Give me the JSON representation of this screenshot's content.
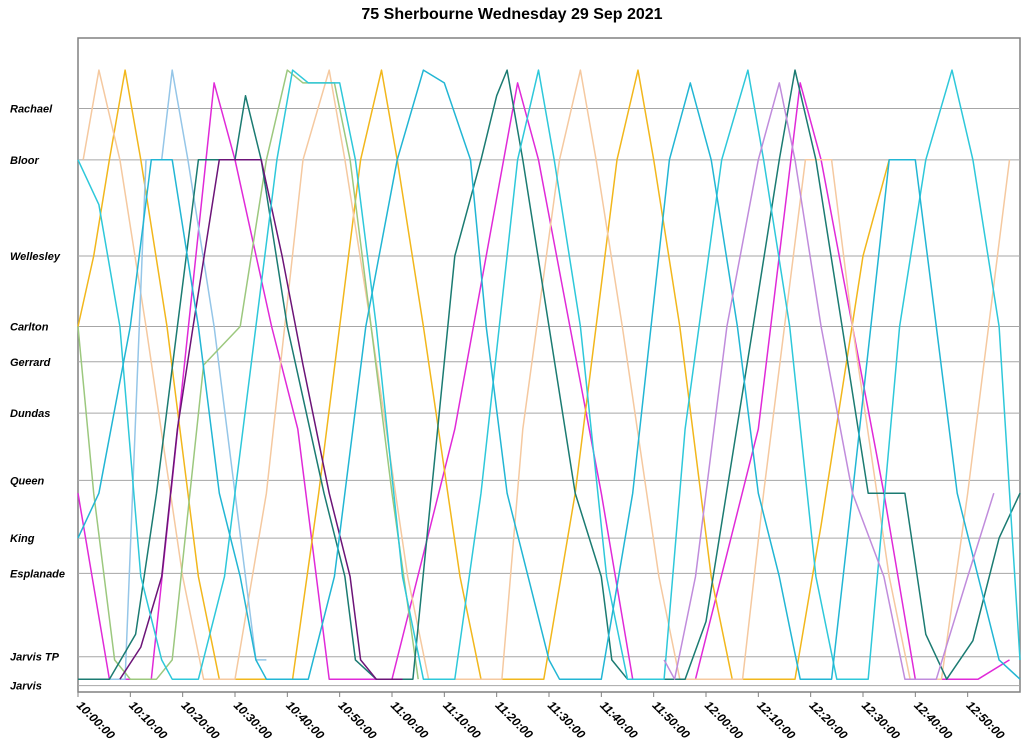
{
  "chart_data": {
    "type": "line",
    "title": "75 Sherbourne Wednesday 29 Sep 2021",
    "xlabel": "",
    "ylabel": "",
    "x_ticks": [
      "10:00:00",
      "10:10:00",
      "10:20:00",
      "10:30:00",
      "10:40:00",
      "10:50:00",
      "11:00:00",
      "11:10:00",
      "11:20:00",
      "11:30:00",
      "11:40:00",
      "11:50:00",
      "12:00:00",
      "12:10:00",
      "12:20:00",
      "12:30:00",
      "12:40:00",
      "12:50:00"
    ],
    "xlim": [
      "10:00:00",
      "13:00:00"
    ],
    "stops": [
      {
        "name": "Rachael",
        "pos": 90
      },
      {
        "name": "Bloor",
        "pos": 82
      },
      {
        "name": "Wellesley",
        "pos": 67
      },
      {
        "name": "Carlton",
        "pos": 56
      },
      {
        "name": "Gerrard",
        "pos": 50.5
      },
      {
        "name": "Dundas",
        "pos": 42.5
      },
      {
        "name": "Queen",
        "pos": 32
      },
      {
        "name": "King",
        "pos": 23
      },
      {
        "name": "Esplanade",
        "pos": 17.5
      },
      {
        "name": "Jarvis TP",
        "pos": 4.5
      },
      {
        "name": "Jarvis",
        "pos": 0
      }
    ],
    "ylim": [
      -1,
      101
    ],
    "grid": "horizontal",
    "legend": "none",
    "series": [
      {
        "color": "#e02ad8",
        "points": [
          [
            0,
            30
          ],
          [
            6,
            1
          ],
          [
            14,
            1
          ],
          [
            26,
            94
          ],
          [
            30,
            82
          ],
          [
            37,
            56
          ],
          [
            42,
            40
          ],
          [
            48,
            1
          ],
          [
            60,
            1
          ],
          [
            72,
            40
          ],
          [
            84,
            94
          ],
          [
            88,
            82
          ],
          [
            94,
            56
          ],
          [
            100,
            30
          ],
          [
            106,
            1
          ],
          [
            118,
            1
          ],
          [
            130,
            40
          ],
          [
            138,
            94
          ],
          [
            142,
            82
          ],
          [
            148,
            56
          ],
          [
            154,
            30
          ],
          [
            160,
            1
          ],
          [
            172,
            1
          ],
          [
            178,
            4
          ]
        ]
      },
      {
        "color": "#f2b71c",
        "points": [
          [
            0,
            56
          ],
          [
            3,
            67
          ],
          [
            6,
            82
          ],
          [
            9,
            96
          ],
          [
            12,
            82
          ],
          [
            17,
            56
          ],
          [
            23,
            17
          ],
          [
            27,
            1
          ],
          [
            41,
            1
          ],
          [
            46,
            30
          ],
          [
            54,
            82
          ],
          [
            58,
            96
          ],
          [
            61,
            82
          ],
          [
            66,
            56
          ],
          [
            73,
            17
          ],
          [
            77,
            1
          ],
          [
            89,
            1
          ],
          [
            95,
            30
          ],
          [
            103,
            82
          ],
          [
            107,
            96
          ],
          [
            110,
            82
          ],
          [
            115,
            56
          ],
          [
            121,
            17
          ],
          [
            125,
            1
          ],
          [
            137,
            1
          ],
          [
            142,
            25
          ],
          [
            150,
            67
          ],
          [
            155,
            82
          ],
          [
            160,
            82
          ]
        ]
      },
      {
        "color": "#f5c9a0",
        "points": [
          [
            1,
            82
          ],
          [
            4,
            96
          ],
          [
            8,
            82
          ],
          [
            13,
            56
          ],
          [
            20,
            17
          ],
          [
            24,
            1
          ],
          [
            30,
            1
          ],
          [
            36,
            30
          ],
          [
            43,
            82
          ],
          [
            48,
            96
          ],
          [
            51,
            82
          ],
          [
            56,
            56
          ],
          [
            63,
            17
          ],
          [
            67,
            1
          ],
          [
            81,
            1
          ],
          [
            85,
            40
          ],
          [
            92,
            82
          ],
          [
            96,
            96
          ],
          [
            99,
            82
          ],
          [
            104,
            56
          ],
          [
            111,
            17
          ],
          [
            115,
            1
          ],
          [
            127,
            1
          ],
          [
            131,
            30
          ],
          [
            139,
            82
          ],
          [
            144,
            82
          ],
          [
            148,
            56
          ],
          [
            155,
            17
          ],
          [
            159,
            1
          ],
          [
            165,
            1
          ],
          [
            170,
            30
          ],
          [
            178,
            82
          ]
        ]
      },
      {
        "color": "#95c6e8",
        "points": [
          [
            0,
            1
          ],
          [
            9,
            1
          ],
          [
            13,
            82
          ],
          [
            16,
            82
          ],
          [
            18,
            96
          ],
          [
            21,
            82
          ],
          [
            26,
            56
          ],
          [
            30,
            30
          ],
          [
            34,
            4
          ],
          [
            36,
            4
          ]
        ]
      },
      {
        "color": "#9cc87e",
        "points": [
          [
            0,
            56
          ],
          [
            3,
            30
          ],
          [
            7,
            4
          ],
          [
            10,
            1
          ],
          [
            15,
            1
          ],
          [
            18,
            4
          ],
          [
            24,
            50
          ],
          [
            31,
            56
          ],
          [
            36,
            82
          ],
          [
            40,
            96
          ],
          [
            43,
            94
          ],
          [
            49,
            94
          ],
          [
            52,
            82
          ],
          [
            56,
            56
          ],
          [
            60,
            30
          ],
          [
            65,
            1
          ]
        ]
      },
      {
        "color": "#1b7b72",
        "points": [
          [
            0,
            1
          ],
          [
            6,
            1
          ],
          [
            11,
            8
          ],
          [
            15,
            30
          ],
          [
            19,
            56
          ],
          [
            23,
            82
          ],
          [
            30,
            82
          ],
          [
            32,
            92
          ],
          [
            35,
            82
          ],
          [
            40,
            56
          ],
          [
            47,
            30
          ],
          [
            51,
            17
          ],
          [
            53,
            4
          ],
          [
            57,
            1
          ],
          [
            64,
            1
          ],
          [
            72,
            67
          ],
          [
            77,
            82
          ],
          [
            80,
            92
          ],
          [
            82,
            96
          ],
          [
            85,
            82
          ],
          [
            90,
            56
          ],
          [
            95,
            30
          ],
          [
            100,
            17
          ],
          [
            102,
            4
          ],
          [
            105,
            1
          ],
          [
            116,
            1
          ],
          [
            120,
            10
          ],
          [
            129,
            56
          ],
          [
            134,
            82
          ],
          [
            137,
            96
          ],
          [
            141,
            82
          ],
          [
            146,
            56
          ],
          [
            151,
            30
          ],
          [
            158,
            30
          ],
          [
            162,
            8
          ],
          [
            166,
            1
          ],
          [
            171,
            7
          ],
          [
            176,
            23
          ],
          [
            180,
            30
          ]
        ]
      },
      {
        "color": "#6c1478",
        "points": [
          [
            8,
            1
          ],
          [
            12,
            6
          ],
          [
            16,
            17
          ],
          [
            19,
            40
          ],
          [
            22,
            56
          ],
          [
            27,
            82
          ],
          [
            35,
            82
          ],
          [
            39,
            67
          ],
          [
            43,
            50
          ],
          [
            48,
            30
          ],
          [
            52,
            17
          ],
          [
            54,
            4
          ],
          [
            57,
            1
          ],
          [
            62,
            1
          ]
        ]
      },
      {
        "color": "#2ec8da",
        "points": [
          [
            0,
            82
          ],
          [
            4,
            75
          ],
          [
            8,
            56
          ],
          [
            12,
            17
          ],
          [
            16,
            4
          ],
          [
            18,
            1
          ],
          [
            23,
            1
          ],
          [
            28,
            17
          ],
          [
            34,
            56
          ],
          [
            38,
            82
          ],
          [
            41,
            96
          ],
          [
            44,
            94
          ],
          [
            50,
            94
          ],
          [
            53,
            82
          ],
          [
            57,
            56
          ],
          [
            62,
            17
          ],
          [
            66,
            1
          ],
          [
            72,
            1
          ],
          [
            77,
            30
          ],
          [
            84,
            82
          ],
          [
            88,
            96
          ],
          [
            91,
            82
          ],
          [
            96,
            56
          ],
          [
            101,
            17
          ],
          [
            105,
            1
          ],
          [
            112,
            1
          ],
          [
            116,
            40
          ],
          [
            123,
            82
          ],
          [
            128,
            96
          ],
          [
            131,
            82
          ],
          [
            136,
            56
          ],
          [
            141,
            17
          ],
          [
            145,
            1
          ],
          [
            151,
            1
          ],
          [
            157,
            56
          ],
          [
            162,
            82
          ],
          [
            167,
            96
          ],
          [
            171,
            82
          ],
          [
            176,
            56
          ],
          [
            180,
            4
          ]
        ]
      },
      {
        "color": "#22b6d4",
        "points": [
          [
            0,
            23
          ],
          [
            4,
            30
          ],
          [
            10,
            56
          ],
          [
            14,
            82
          ],
          [
            18,
            82
          ],
          [
            23,
            56
          ],
          [
            27,
            30
          ],
          [
            31,
            17
          ],
          [
            34,
            4
          ],
          [
            36,
            1
          ],
          [
            44,
            1
          ],
          [
            49,
            17
          ],
          [
            55,
            56
          ],
          [
            61,
            82
          ],
          [
            66,
            96
          ],
          [
            70,
            94
          ],
          [
            75,
            82
          ],
          [
            78,
            56
          ],
          [
            82,
            30
          ],
          [
            86,
            17
          ],
          [
            90,
            4
          ],
          [
            92,
            1
          ],
          [
            100,
            1
          ],
          [
            106,
            30
          ],
          [
            113,
            82
          ],
          [
            117,
            94
          ],
          [
            121,
            82
          ],
          [
            126,
            56
          ],
          [
            130,
            30
          ],
          [
            134,
            17
          ],
          [
            138,
            1
          ],
          [
            144,
            1
          ],
          [
            148,
            30
          ],
          [
            155,
            82
          ],
          [
            160,
            82
          ],
          [
            164,
            56
          ],
          [
            168,
            30
          ],
          [
            172,
            17
          ],
          [
            176,
            4
          ],
          [
            180,
            1
          ]
        ]
      },
      {
        "color": "#c08cdc",
        "points": [
          [
            112,
            4
          ],
          [
            114,
            1
          ],
          [
            118,
            17
          ],
          [
            124,
            56
          ],
          [
            130,
            82
          ],
          [
            134,
            94
          ],
          [
            137,
            82
          ],
          [
            142,
            56
          ],
          [
            148,
            30
          ],
          [
            154,
            17
          ],
          [
            158,
            1
          ],
          [
            164,
            1
          ],
          [
            170,
            17
          ],
          [
            175,
            30
          ]
        ]
      }
    ]
  }
}
